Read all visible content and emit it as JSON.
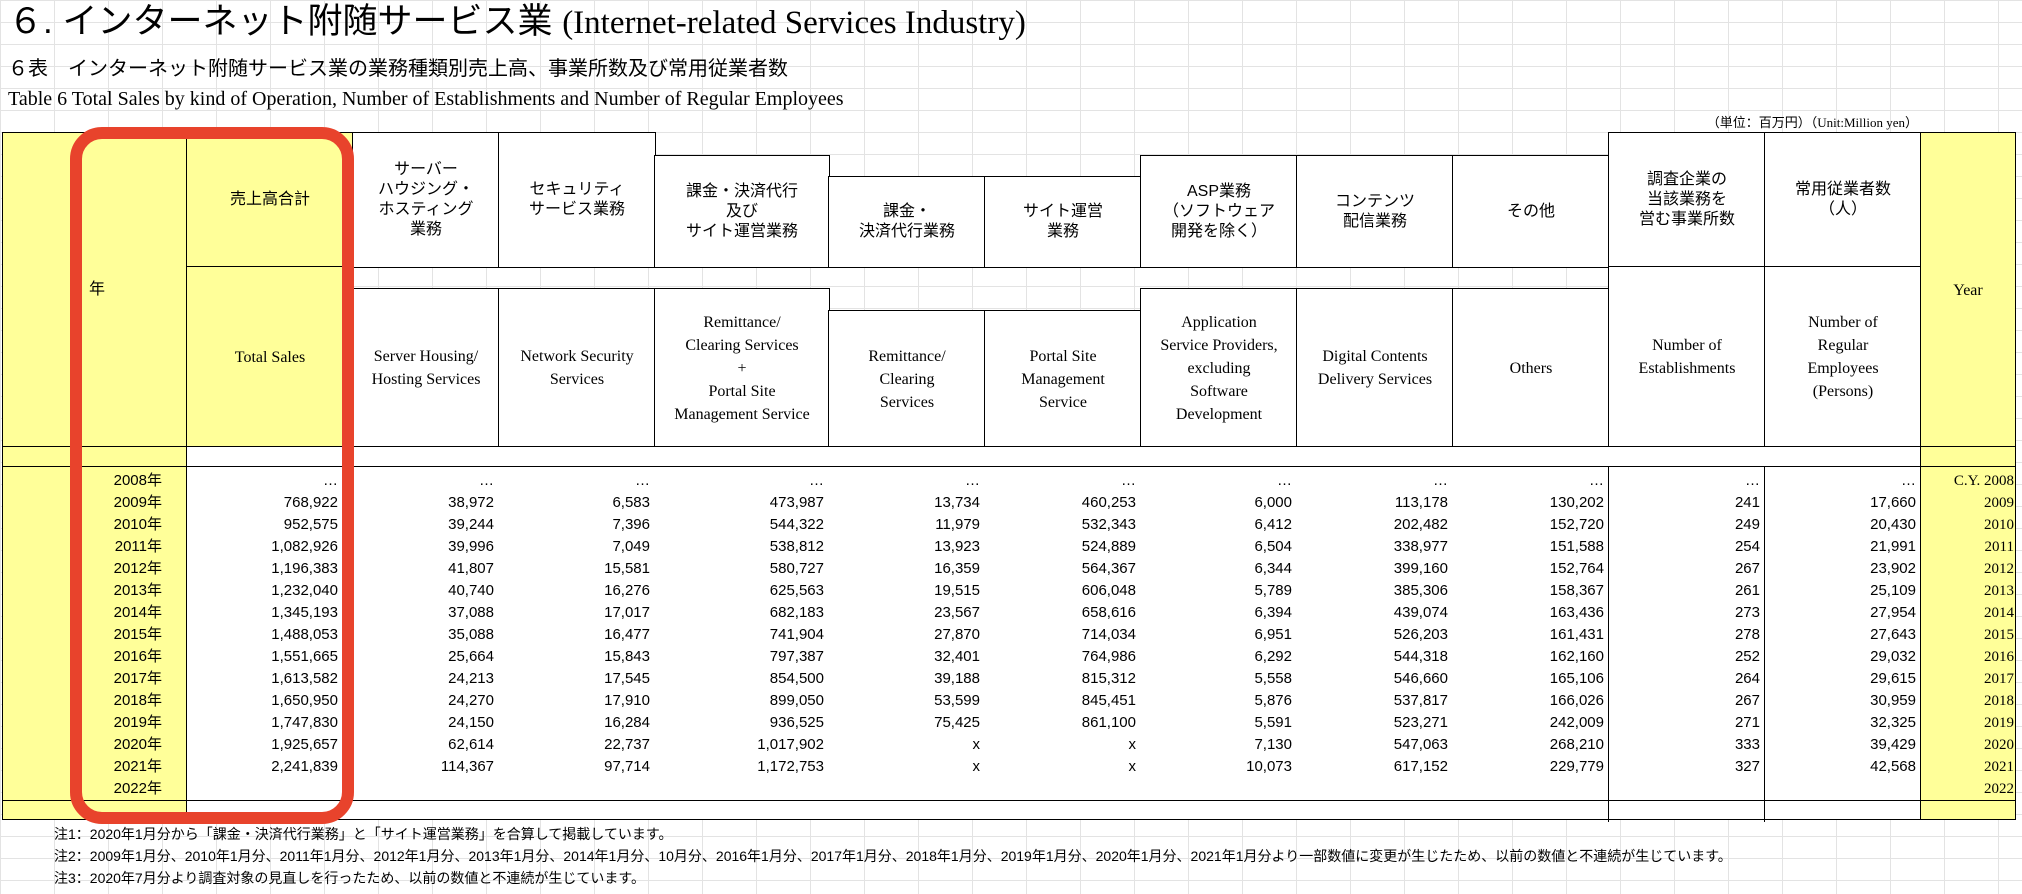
{
  "title": {
    "jp": "６. インターネット附随サービス業",
    "en": "(Internet-related Services Industry)"
  },
  "subtitle_jp": "６表　インターネット附随サービス業の業務種類別売上高、事業所数及び常用従業者数",
  "subtitle_en": "Table 6 Total Sales by kind of Operation, Number of Establishments and Number of Regular Employees",
  "unit": {
    "jp": "（単位：百万円）",
    "en": "（Unit:Million yen）"
  },
  "headers": {
    "year_jp": "年",
    "year_en": "Year",
    "total_jp": "売上高合計",
    "total_en": "Total Sales",
    "server_jp": "サーバー\nハウジング・\nホスティング\n業務",
    "server_en": "Server Housing/\nHosting Services",
    "security_jp": "セキュリティ\nサービス業務",
    "security_en": "Network Security\nServices",
    "kakin_site_jp": "課金・決済代行\n及び\nサイト運営業務",
    "kakin_site_en": "Remittance/\nClearing Services\n+\nPortal Site\nManagement Service",
    "kakin_jp": "課金・\n決済代行業務",
    "kakin_en": "Remittance/\nClearing\nServices",
    "site_jp": "サイト運営\n業務",
    "site_en": "Portal Site\nManagement\nService",
    "asp_jp": "ASP業務\n（ソフトウェア\n開発を除く）",
    "asp_en": "Application\nService Providers,\nexcluding\nSoftware\nDevelopment",
    "contents_jp": "コンテンツ\n配信業務",
    "contents_en": "Digital Contents\nDelivery Services",
    "others_jp": "その他",
    "others_en": "Others",
    "estab_jp": "調査企業の\n当該業務を\n営む事業所数",
    "estab_en": "Number of\nEstablishments",
    "employees_jp": "常用従業者数\n（人）",
    "employees_en": "Number of\nRegular\nEmployees\n(Persons)"
  },
  "rows": [
    {
      "year": "2008年",
      "total": "…",
      "server": "…",
      "security": "…",
      "kakin_site": "…",
      "kakin": "…",
      "site": "…",
      "asp": "…",
      "contents": "…",
      "others": "…",
      "estab": "…",
      "employees": "…",
      "year_en": "C.Y.  2008"
    },
    {
      "year": "2009年",
      "total": "768,922",
      "server": "38,972",
      "security": "6,583",
      "kakin_site": "473,987",
      "kakin": "13,734",
      "site": "460,253",
      "asp": "6,000",
      "contents": "113,178",
      "others": "130,202",
      "estab": "241",
      "employees": "17,660",
      "year_en": "2009"
    },
    {
      "year": "2010年",
      "total": "952,575",
      "server": "39,244",
      "security": "7,396",
      "kakin_site": "544,322",
      "kakin": "11,979",
      "site": "532,343",
      "asp": "6,412",
      "contents": "202,482",
      "others": "152,720",
      "estab": "249",
      "employees": "20,430",
      "year_en": "2010"
    },
    {
      "year": "2011年",
      "total": "1,082,926",
      "server": "39,996",
      "security": "7,049",
      "kakin_site": "538,812",
      "kakin": "13,923",
      "site": "524,889",
      "asp": "6,504",
      "contents": "338,977",
      "others": "151,588",
      "estab": "254",
      "employees": "21,991",
      "year_en": "2011"
    },
    {
      "year": "2012年",
      "total": "1,196,383",
      "server": "41,807",
      "security": "15,581",
      "kakin_site": "580,727",
      "kakin": "16,359",
      "site": "564,367",
      "asp": "6,344",
      "contents": "399,160",
      "others": "152,764",
      "estab": "267",
      "employees": "23,902",
      "year_en": "2012"
    },
    {
      "year": "2013年",
      "total": "1,232,040",
      "server": "40,740",
      "security": "16,276",
      "kakin_site": "625,563",
      "kakin": "19,515",
      "site": "606,048",
      "asp": "5,789",
      "contents": "385,306",
      "others": "158,367",
      "estab": "261",
      "employees": "25,109",
      "year_en": "2013"
    },
    {
      "year": "2014年",
      "total": "1,345,193",
      "server": "37,088",
      "security": "17,017",
      "kakin_site": "682,183",
      "kakin": "23,567",
      "site": "658,616",
      "asp": "6,394",
      "contents": "439,074",
      "others": "163,436",
      "estab": "273",
      "employees": "27,954",
      "year_en": "2014"
    },
    {
      "year": "2015年",
      "total": "1,488,053",
      "server": "35,088",
      "security": "16,477",
      "kakin_site": "741,904",
      "kakin": "27,870",
      "site": "714,034",
      "asp": "6,951",
      "contents": "526,203",
      "others": "161,431",
      "estab": "278",
      "employees": "27,643",
      "year_en": "2015"
    },
    {
      "year": "2016年",
      "total": "1,551,665",
      "server": "25,664",
      "security": "15,843",
      "kakin_site": "797,387",
      "kakin": "32,401",
      "site": "764,986",
      "asp": "6,292",
      "contents": "544,318",
      "others": "162,160",
      "estab": "252",
      "employees": "29,032",
      "year_en": "2016"
    },
    {
      "year": "2017年",
      "total": "1,613,582",
      "server": "24,213",
      "security": "17,545",
      "kakin_site": "854,500",
      "kakin": "39,188",
      "site": "815,312",
      "asp": "5,558",
      "contents": "546,660",
      "others": "165,106",
      "estab": "264",
      "employees": "29,615",
      "year_en": "2017"
    },
    {
      "year": "2018年",
      "total": "1,650,950",
      "server": "24,270",
      "security": "17,910",
      "kakin_site": "899,050",
      "kakin": "53,599",
      "site": "845,451",
      "asp": "5,876",
      "contents": "537,817",
      "others": "166,026",
      "estab": "267",
      "employees": "30,959",
      "year_en": "2018"
    },
    {
      "year": "2019年",
      "total": "1,747,830",
      "server": "24,150",
      "security": "16,284",
      "kakin_site": "936,525",
      "kakin": "75,425",
      "site": "861,100",
      "asp": "5,591",
      "contents": "523,271",
      "others": "242,009",
      "estab": "271",
      "employees": "32,325",
      "year_en": "2019"
    },
    {
      "year": "2020年",
      "total": "1,925,657",
      "server": "62,614",
      "security": "22,737",
      "kakin_site": "1,017,902",
      "kakin": "x",
      "site": "x",
      "asp": "7,130",
      "contents": "547,063",
      "others": "268,210",
      "estab": "333",
      "employees": "39,429",
      "year_en": "2020"
    },
    {
      "year": "2021年",
      "total": "2,241,839",
      "server": "114,367",
      "security": "97,714",
      "kakin_site": "1,172,753",
      "kakin": "x",
      "site": "x",
      "asp": "10,073",
      "contents": "617,152",
      "others": "229,779",
      "estab": "327",
      "employees": "42,568",
      "year_en": "2021"
    },
    {
      "year": "2022年",
      "total": "",
      "server": "",
      "security": "",
      "kakin_site": "",
      "kakin": "",
      "site": "",
      "asp": "",
      "contents": "",
      "others": "",
      "estab": "",
      "employees": "",
      "year_en": "2022"
    }
  ],
  "notes": [
    "注1：2020年1月分から「課金・決済代行業務」と「サイト運営業務」を合算して掲載しています。",
    "注2：2009年1月分、2010年1月分、2011年1月分、2012年1月分、2013年1月分、2014年1月分、10月分、2016年1月分、2017年1月分、2018年1月分、2019年1月分、2020年1月分、2021年1月分より一部数値に変更が生じたため、以前の数値と不連続が生じています。",
    "注3：2020年7月分より調査対象の見直しを行ったため、以前の数値と不連続が生じています。"
  ],
  "highlight_color": "#e8432c",
  "header_fill": "#ffff99"
}
